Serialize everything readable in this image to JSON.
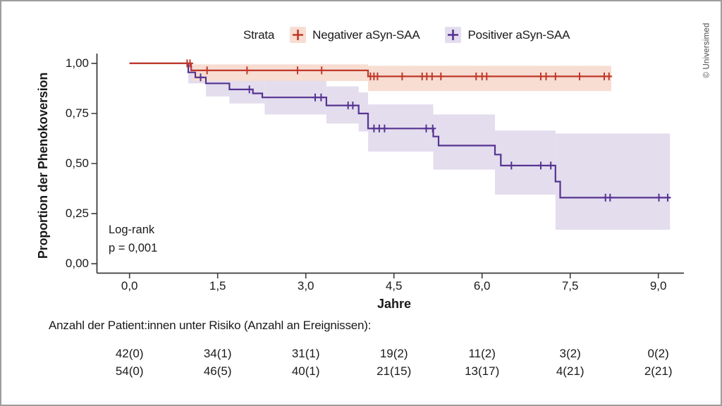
{
  "figure": {
    "credit": "© Universimed",
    "legend": {
      "title": "Strata",
      "items": [
        {
          "label": "Negativer aSyn-SAA"
        },
        {
          "label": "Positiver aSyn-SAA"
        }
      ]
    },
    "annotation": {
      "test": "Log-rank",
      "p_value": "p = 0,001"
    },
    "colors": {
      "axis": "#3c3c3c",
      "text": "#1a1a1a",
      "border": "#9d9d9d",
      "credit": "#4a4a4a"
    }
  },
  "chart_data": {
    "type": "line",
    "subtype": "kaplan-meier-step-with-confidence-bands",
    "title": "",
    "xlabel": "Jahre",
    "ylabel": "Proportion der Phenokoversion",
    "xlim": [
      0,
      9.45
    ],
    "ylim": [
      0,
      1.05
    ],
    "grid": false,
    "legend_position": "top",
    "xticks": {
      "values": [
        0,
        1.5,
        3,
        4.5,
        6,
        7.5,
        9
      ],
      "labels": [
        "0,0",
        "1,5",
        "3,0",
        "4,5",
        "6,0",
        "7,5",
        "9,0"
      ]
    },
    "yticks": {
      "values": [
        0,
        0.25,
        0.5,
        0.75,
        1
      ],
      "labels": [
        "0,00",
        "0,25",
        "0,50",
        "0,75",
        "1,00"
      ]
    },
    "series": [
      {
        "name": "Negativer aSyn-SAA",
        "color": "#c0392b",
        "fill": "#f7ddd2",
        "end": 8.2,
        "steps": [
          [
            0,
            1.0
          ],
          [
            1.05,
            0.965
          ],
          [
            4.06,
            0.935
          ]
        ],
        "censors": [
          [
            0.98,
            1.0
          ],
          [
            1.03,
            1.0
          ],
          [
            1.32,
            0.965
          ],
          [
            2.0,
            0.965
          ],
          [
            2.86,
            0.965
          ],
          [
            3.27,
            0.965
          ],
          [
            4.1,
            0.935
          ],
          [
            4.16,
            0.935
          ],
          [
            4.22,
            0.935
          ],
          [
            4.64,
            0.935
          ],
          [
            4.98,
            0.935
          ],
          [
            5.06,
            0.935
          ],
          [
            5.15,
            0.935
          ],
          [
            5.3,
            0.935
          ],
          [
            5.9,
            0.935
          ],
          [
            6.0,
            0.935
          ],
          [
            6.08,
            0.935
          ],
          [
            7.0,
            0.935
          ],
          [
            7.09,
            0.935
          ],
          [
            7.25,
            0.935
          ],
          [
            7.66,
            0.935
          ],
          [
            8.08,
            0.935
          ],
          [
            8.16,
            0.935
          ]
        ],
        "band": [
          [
            1.08,
            4.06,
            0.912,
            0.995
          ],
          [
            4.06,
            8.2,
            0.862,
            0.988
          ]
        ]
      },
      {
        "name": "Positiver aSyn-SAA",
        "color": "#563391",
        "fill": "#e3ddee",
        "end": 9.2,
        "steps": [
          [
            0,
            1.0
          ],
          [
            1.0,
            0.955
          ],
          [
            1.12,
            0.93
          ],
          [
            1.3,
            0.9
          ],
          [
            1.7,
            0.87
          ],
          [
            2.1,
            0.85
          ],
          [
            2.26,
            0.83
          ],
          [
            3.35,
            0.79
          ],
          [
            3.9,
            0.75
          ],
          [
            4.06,
            0.675
          ],
          [
            5.17,
            0.635
          ],
          [
            5.26,
            0.59
          ],
          [
            6.22,
            0.545
          ],
          [
            6.32,
            0.49
          ],
          [
            7.25,
            0.41
          ],
          [
            7.33,
            0.33
          ]
        ],
        "censors": [
          [
            1.21,
            0.93
          ],
          [
            2.04,
            0.87
          ],
          [
            3.16,
            0.83
          ],
          [
            3.26,
            0.83
          ],
          [
            3.72,
            0.79
          ],
          [
            3.8,
            0.79
          ],
          [
            4.16,
            0.675
          ],
          [
            4.25,
            0.675
          ],
          [
            4.34,
            0.675
          ],
          [
            5.05,
            0.675
          ],
          [
            5.16,
            0.675
          ],
          [
            6.5,
            0.49
          ],
          [
            7.0,
            0.49
          ],
          [
            7.17,
            0.49
          ],
          [
            8.1,
            0.33
          ],
          [
            8.18,
            0.33
          ],
          [
            9.01,
            0.33
          ],
          [
            9.16,
            0.33
          ]
        ],
        "band": [
          [
            1.0,
            1.3,
            0.9,
            0.99
          ],
          [
            1.3,
            1.7,
            0.835,
            0.975
          ],
          [
            1.7,
            2.3,
            0.8,
            0.95
          ],
          [
            2.3,
            3.35,
            0.745,
            0.925
          ],
          [
            3.35,
            3.9,
            0.7,
            0.885
          ],
          [
            3.9,
            4.06,
            0.66,
            0.855
          ],
          [
            4.06,
            5.17,
            0.56,
            0.795
          ],
          [
            5.17,
            6.22,
            0.47,
            0.745
          ],
          [
            6.22,
            7.25,
            0.345,
            0.665
          ],
          [
            7.25,
            9.2,
            0.17,
            0.65
          ]
        ]
      }
    ]
  },
  "risk_table": {
    "title": "Anzahl der Patient:innen unter Risiko (Anzahl an Ereignissen):",
    "rows": [
      [
        "42(0)",
        "34(1)",
        "31(1)",
        "19(2)",
        "11(2)",
        "3(2)",
        "0(2)"
      ],
      [
        "54(0)",
        "46(5)",
        "40(1)",
        "21(15)",
        "13(17)",
        "4(21)",
        "2(21)"
      ]
    ]
  }
}
